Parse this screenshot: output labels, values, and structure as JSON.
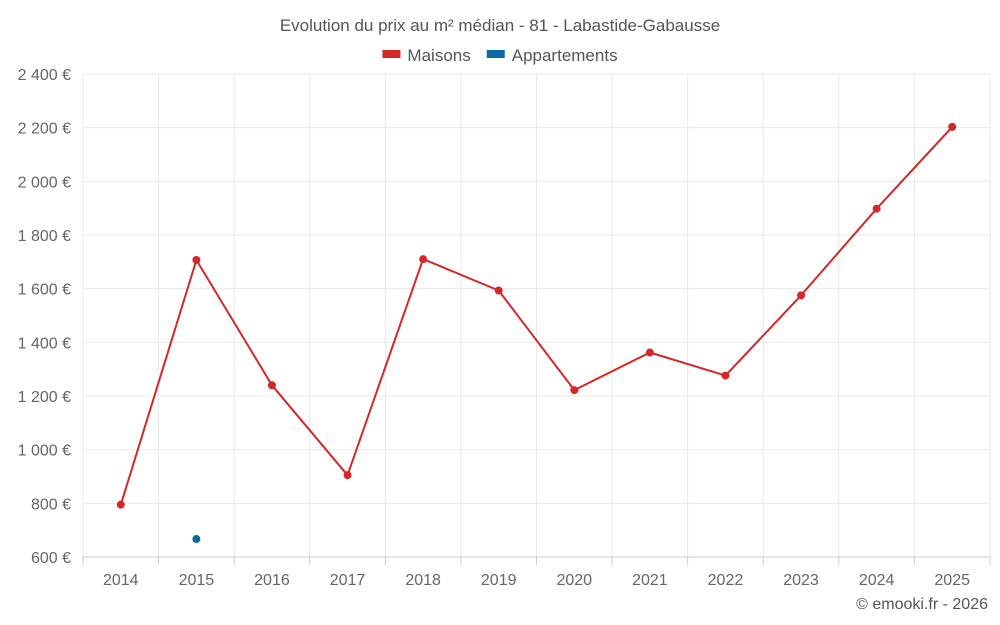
{
  "chart_data": {
    "type": "line",
    "title": "Evolution du prix au m² médian - 81 - Labastide-Gabausse",
    "categories": [
      "2014",
      "2015",
      "2016",
      "2017",
      "2018",
      "2019",
      "2020",
      "2021",
      "2022",
      "2023",
      "2024",
      "2025"
    ],
    "series": [
      {
        "name": "Maisons",
        "color": "#d62728",
        "values": [
          795,
          1707,
          1240,
          905,
          1710,
          1593,
          1222,
          1362,
          1276,
          1575,
          1898,
          2203
        ]
      },
      {
        "name": "Appartements",
        "color": "#0b6aa2",
        "values": [
          null,
          667,
          null,
          null,
          null,
          null,
          null,
          null,
          null,
          null,
          null,
          null
        ]
      }
    ],
    "ylim": [
      600,
      2400
    ],
    "yticks": [
      600,
      800,
      1000,
      1200,
      1400,
      1600,
      1800,
      2000,
      2200,
      2400
    ],
    "ytick_labels": [
      "600 €",
      "800 €",
      "1 000 €",
      "1 200 €",
      "1 400 €",
      "1 600 €",
      "1 800 €",
      "2 000 €",
      "2 200 €",
      "2 400 €"
    ],
    "xlabel": "",
    "ylabel": "",
    "grid": true,
    "legend_position": "top-center"
  },
  "credit": "© emooki.fr - 2026"
}
